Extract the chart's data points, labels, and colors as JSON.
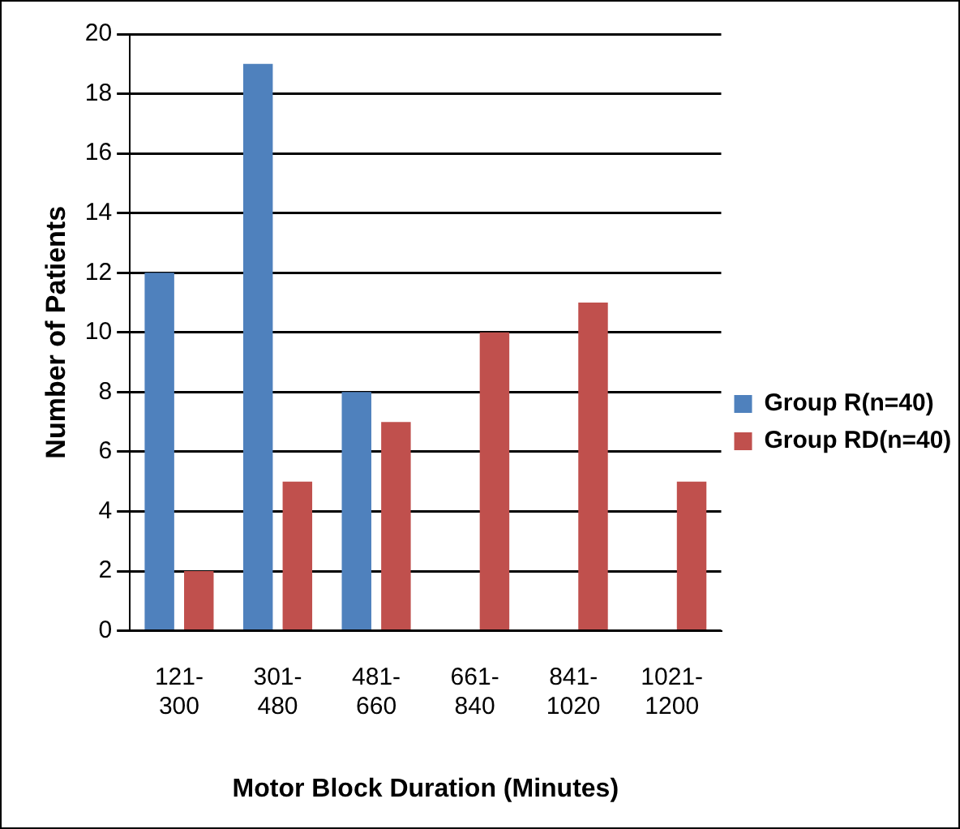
{
  "chart_data": {
    "type": "bar",
    "xlabel": "Motor Block Duration (Minutes)",
    "ylabel": "Number of Patients",
    "categories": [
      "121-\n300",
      "301-\n480",
      "481-\n660",
      "661-\n840",
      "841-\n1020",
      "1021-\n1200"
    ],
    "series": [
      {
        "name": "Group R(n=40)",
        "color": "#4f81bd",
        "values": [
          12,
          19,
          8,
          0,
          0,
          0
        ]
      },
      {
        "name": "Group RD(n=40)",
        "color": "#c0504d",
        "values": [
          2,
          5,
          7,
          10,
          11,
          5
        ]
      }
    ],
    "ylim": [
      0,
      20
    ],
    "yticks": [
      0,
      2,
      4,
      6,
      8,
      10,
      12,
      14,
      16,
      18,
      20
    ],
    "grid": "y",
    "legend": "right"
  }
}
